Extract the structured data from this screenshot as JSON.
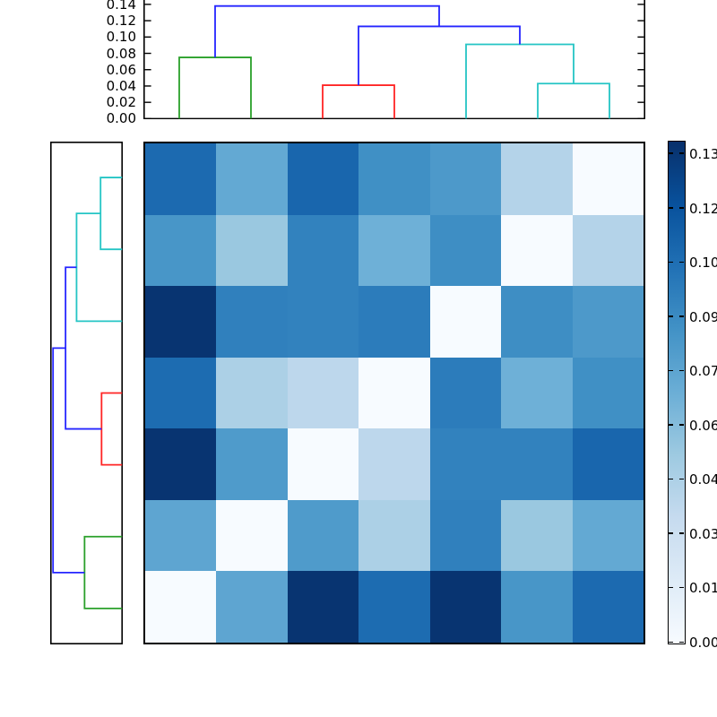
{
  "chart_data": {
    "type": "heatmap",
    "title": "",
    "xlabel": "",
    "ylabel": "",
    "n_rows": 7,
    "n_cols": 7,
    "vmin": 0.0,
    "vmax": 0.13,
    "colormap": "Blues",
    "colormap_stops": [
      "#f7fbff",
      "#deebf7",
      "#c6dbef",
      "#9ecae1",
      "#6baed6",
      "#4292c6",
      "#2171b5",
      "#08519c",
      "#08306b"
    ],
    "values": [
      [
        0.101,
        0.068,
        0.103,
        0.082,
        0.077,
        0.04,
        0.0
      ],
      [
        0.079,
        0.05,
        0.089,
        0.064,
        0.083,
        0.0,
        0.04
      ],
      [
        0.128,
        0.09,
        0.089,
        0.092,
        0.0,
        0.083,
        0.077
      ],
      [
        0.1,
        0.043,
        0.036,
        0.0,
        0.092,
        0.064,
        0.082
      ],
      [
        0.128,
        0.076,
        0.0,
        0.036,
        0.089,
        0.089,
        0.103
      ],
      [
        0.07,
        0.0,
        0.076,
        0.043,
        0.09,
        0.05,
        0.068
      ],
      [
        0.0,
        0.07,
        0.128,
        0.1,
        0.128,
        0.079,
        0.101
      ]
    ],
    "colorbar": {
      "tick_labels_bottom_to_top": [
        "0.00",
        "0.01",
        "0.03",
        "0.04",
        "0.06",
        "0.07",
        "0.09",
        "0.10",
        "0.12",
        "0.13"
      ]
    },
    "top_dendrogram": {
      "axis_tick_labels_bottom_to_top": [
        "0.00",
        "0.02",
        "0.04",
        "0.06",
        "0.08",
        "0.10",
        "0.12",
        "0.14"
      ],
      "axis_tick_step": 0.02,
      "leaf_count": 7,
      "links": [
        {
          "color": "green",
          "x1": 1.0,
          "x2": 2.0,
          "height": 0.075,
          "drop1": 0.0,
          "drop2": 0.0
        },
        {
          "color": "red",
          "x1": 3.0,
          "x2": 4.0,
          "height": 0.041,
          "drop1": 0.0,
          "drop2": 0.0
        },
        {
          "color": "cyan",
          "x1": 6.0,
          "x2": 7.0,
          "height": 0.043,
          "drop1": 0.0,
          "drop2": 0.0
        },
        {
          "color": "cyan",
          "x1": 5.0,
          "x2": 6.5,
          "height": 0.091,
          "drop1": 0.0,
          "drop2": 0.043
        },
        {
          "color": "blue",
          "x1": 3.5,
          "x2": 5.75,
          "height": 0.113,
          "drop1": 0.041,
          "drop2": 0.091
        },
        {
          "color": "blue",
          "x1": 1.5,
          "x2": 4.625,
          "height": 0.138,
          "drop1": 0.075,
          "drop2": 0.113
        }
      ]
    },
    "left_dendrogram": {
      "leaf_count": 7,
      "links": [
        {
          "color": "cyan",
          "x1": 1.0,
          "x2": 2.0,
          "height": 0.043,
          "drop1": 0.0,
          "drop2": 0.0
        },
        {
          "color": "cyan",
          "x1": 1.5,
          "x2": 3.0,
          "height": 0.091,
          "drop1": 0.043,
          "drop2": 0.0
        },
        {
          "color": "red",
          "x1": 4.0,
          "x2": 5.0,
          "height": 0.041,
          "drop1": 0.0,
          "drop2": 0.0
        },
        {
          "color": "blue",
          "x1": 2.25,
          "x2": 4.5,
          "height": 0.113,
          "drop1": 0.091,
          "drop2": 0.041
        },
        {
          "color": "green",
          "x1": 6.0,
          "x2": 7.0,
          "height": 0.075,
          "drop1": 0.0,
          "drop2": 0.0
        },
        {
          "color": "blue",
          "x1": 3.375,
          "x2": 6.5,
          "height": 0.138,
          "drop1": 0.113,
          "drop2": 0.075
        }
      ]
    },
    "link_colors": {
      "green": "#2aa02a",
      "red": "#ff2525",
      "cyan": "#25c5c5",
      "blue": "#2525ff"
    },
    "axis_color": "#000000"
  }
}
